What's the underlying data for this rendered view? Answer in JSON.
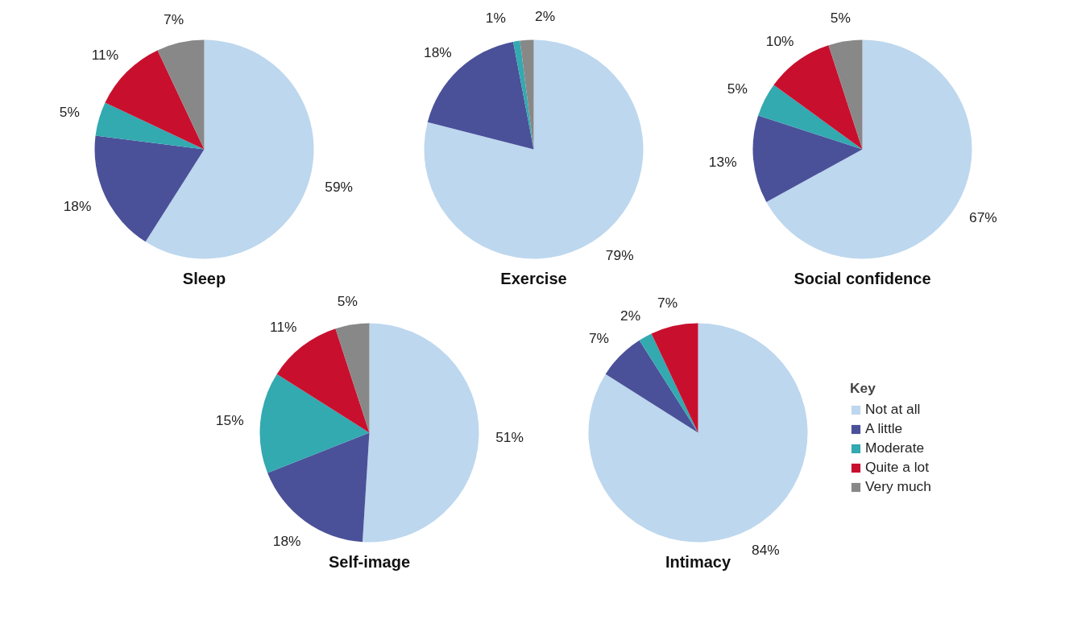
{
  "chart_data": [
    {
      "type": "pie",
      "title": "Sleep",
      "categories": [
        "Not at all",
        "A little",
        "Moderate",
        "Quite a lot",
        "Very much"
      ],
      "values": [
        59,
        18,
        5,
        11,
        7
      ],
      "value_labels": [
        "59%",
        "18%",
        "5%",
        "11%",
        "7%"
      ],
      "colors": [
        "#bdd7ee",
        "#4a5199",
        "#33a9b0",
        "#c8102e",
        "#888888"
      ],
      "legend": "right",
      "legend_title": "Key"
    },
    {
      "type": "pie",
      "title": "Exercise",
      "categories": [
        null,
        null,
        null,
        null,
        null
      ],
      "values": [
        79,
        18,
        1,
        0,
        2
      ],
      "value_labels": [
        "79%",
        "18%",
        "1%",
        null,
        "2%"
      ],
      "colors": [
        "#bdd7ee",
        "#4a5199",
        "#33a9b0",
        "#c8102e",
        "#888888"
      ]
    },
    {
      "type": "pie",
      "title": "Social confidence",
      "categories": [
        null,
        null,
        null,
        null,
        null
      ],
      "values": [
        67,
        13,
        5,
        10,
        5
      ],
      "value_labels": [
        "67%",
        "13%",
        "5%",
        "10%",
        "5%"
      ],
      "colors": [
        "#bdd7ee",
        "#4a5199",
        "#33a9b0",
        "#c8102e",
        "#888888"
      ]
    },
    {
      "type": "pie",
      "title": "Self-image",
      "categories": [
        null,
        null,
        null,
        null,
        null
      ],
      "values": [
        51,
        18,
        15,
        11,
        5
      ],
      "value_labels": [
        "51%",
        "18%",
        "15%",
        "11%",
        "5%"
      ],
      "colors": [
        "#bdd7ee",
        "#4a5199",
        "#33a9b0",
        "#c8102e",
        "#888888"
      ]
    },
    {
      "type": "pie",
      "title": "Intimacy",
      "categories": [
        null,
        null,
        null,
        null,
        null
      ],
      "values": [
        84,
        7,
        2,
        7,
        0
      ],
      "value_labels": [
        "84%",
        "7%",
        "2%",
        "7%",
        null
      ],
      "colors": [
        "#bdd7ee",
        "#4a5199",
        "#33a9b0",
        "#c8102e",
        "#888888"
      ]
    }
  ]
}
